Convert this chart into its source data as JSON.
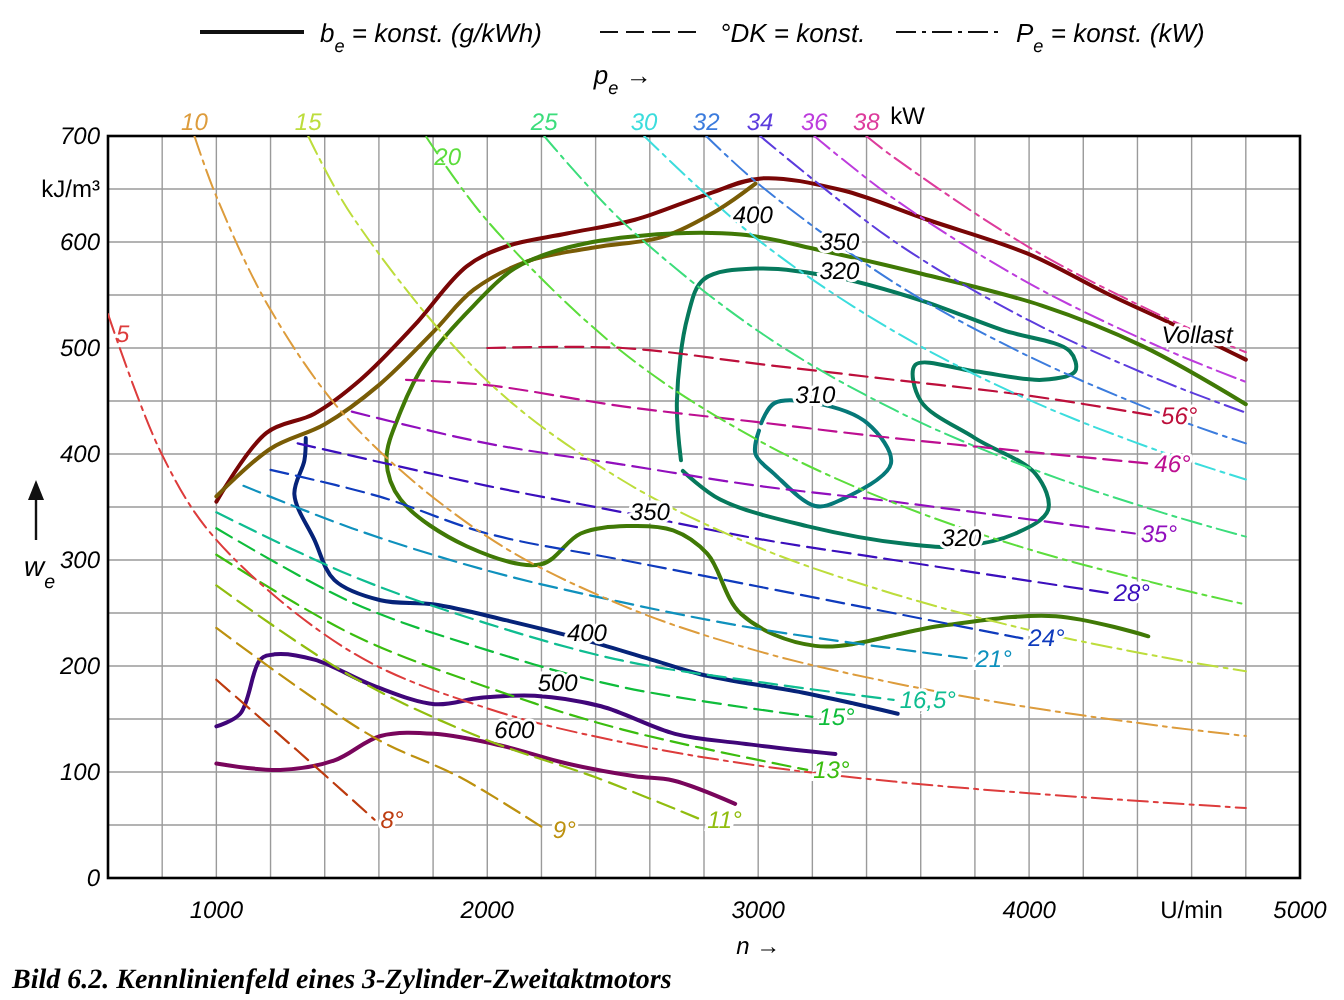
{
  "chart_data": {
    "type": "line",
    "title": "Bild 6.2. Kennlinienfeld eines 3-Zylinder-Zweitaktmotors",
    "xlabel": "n →",
    "ylabel": "w$_{e}$",
    "legend": "top",
    "grid": true,
    "xlim": [
      600,
      5000
    ],
    "ylim": [
      0,
      700
    ],
    "xticks": [
      {
        "value": 600,
        "label": null
      },
      {
        "value": 800,
        "label": null
      },
      1000,
      {
        "value": 1200,
        "label": null
      },
      {
        "value": 1400,
        "label": null
      },
      {
        "value": 1600,
        "label": null
      },
      {
        "value": 1800,
        "label": null
      },
      2000,
      {
        "value": 2200,
        "label": null
      },
      {
        "value": 2400,
        "label": null
      },
      {
        "value": 2600,
        "label": null
      },
      {
        "value": 2800,
        "label": null
      },
      3000,
      {
        "value": 3200,
        "label": null
      },
      {
        "value": 3400,
        "label": null
      },
      {
        "value": 3600,
        "label": null
      },
      {
        "value": 3800,
        "label": null
      },
      4000,
      {
        "value": 4200,
        "label": null
      },
      {
        "value": 4400,
        "label": null
      },
      {
        "value": 4600,
        "label": "U/min"
      },
      {
        "value": 4800,
        "label": null
      },
      5000
    ],
    "yticks": [
      0,
      {
        "value": 50,
        "label": null
      },
      100,
      {
        "value": 150,
        "label": null
      },
      200,
      {
        "value": 250,
        "label": null
      },
      300,
      {
        "value": 350,
        "label": null
      },
      400,
      {
        "value": 450,
        "label": null
      },
      500,
      {
        "value": 550,
        "label": null
      },
      600,
      {
        "value": 650,
        "label": "kJ/m³"
      },
      700
    ],
    "annotations": [
      "b$_{e}$ = konst. (g/kWh)",
      "°DK = konst.",
      "P$_{e}$ = konst. (kW)",
      "p$_{e}$ →",
      "kW",
      {
        "text": "Vollast",
        "x": 4620,
        "y": 505
      },
      {
        "text": "400",
        "x": 2980,
        "y": 618
      },
      {
        "text": "350",
        "x": 3300,
        "y": 592
      },
      {
        "text": "320",
        "x": 3300,
        "y": 565
      },
      {
        "text": "310",
        "x": 3211,
        "y": 448
      },
      {
        "text": "320",
        "x": 3750,
        "y": 313
      },
      {
        "text": "350",
        "x": 2600,
        "y": 338
      },
      {
        "text": "400",
        "x": 2368,
        "y": 224
      },
      {
        "text": "500",
        "x": 2260,
        "y": 176
      },
      {
        "text": "600",
        "x": 2100,
        "y": 132
      }
    ],
    "series": [
      {
        "line_style": "solid",
        "color": "#790606",
        "x": [
          1000,
          1185,
          1362,
          1532,
          1730,
          1924,
          2072,
          2294,
          2545,
          2812,
          3011,
          3307,
          3625,
          3995,
          4291,
          4543,
          4800
        ],
        "values": [
          355,
          420,
          438,
          470,
          521,
          577,
          596,
          608,
          621,
          645,
          660,
          649,
          621,
          589,
          551,
          521,
          489
        ]
      },
      {
        "line_style": "solid",
        "color": "#795c06",
        "x": [
          1000,
          1200,
          1400,
          1600,
          1800,
          1950,
          2150,
          2400,
          2650,
          2850,
          2990
        ],
        "values": [
          360,
          405,
          428,
          465,
          515,
          555,
          582,
          595,
          605,
          630,
          655
        ]
      },
      {
        "line_style": "solid",
        "color": "#407906",
        "x": [
          4800,
          4417,
          4047,
          3603,
          3233,
          2937,
          2568,
          2300,
          2100,
          1950,
          1780,
          1680,
          1628,
          1680,
          1924,
          2198,
          2345,
          2515,
          2686,
          2812,
          2937,
          3211,
          3677,
          4099,
          4440
        ],
        "values": [
          447,
          502,
          540,
          570,
          592,
          607,
          606,
          595,
          575,
          540,
          490,
          440,
          394,
          357,
          313,
          296,
          325,
          332,
          328,
          306,
          249,
          219,
          238,
          247,
          228
        ]
      },
      {
        "line_style": "solid",
        "color": "#06795c",
        "x": [
          2715,
          2700,
          2740,
          2800,
          3000,
          3300,
          3600,
          3900,
          4150,
          4170,
          4050,
          3800,
          3580,
          3600,
          3800,
          4025,
          4070,
          3950,
          3750,
          3550,
          3180,
          2860,
          2722
        ],
        "values": [
          394,
          450,
          530,
          565,
          575,
          566,
          545,
          517,
          497,
          478,
          470,
          478,
          484,
          450,
          415,
          381,
          347,
          325,
          313,
          315,
          332,
          357,
          384
        ]
      },
      {
        "line_style": "solid",
        "color": "#067979",
        "x": [
          3011,
          3060,
          3211,
          3403,
          3490,
          3307,
          3211,
          3060,
          2990,
          3003
        ],
        "values": [
          429,
          448,
          448,
          429,
          391,
          357,
          351,
          381,
          400,
          422
        ]
      },
      {
        "line_style": "solid",
        "color": "#062379",
        "x": [
          1330,
          1325,
          1288,
          1362,
          1436,
          1606,
          1806,
          2072,
          2368,
          2619,
          2790,
          3181,
          3515
        ],
        "values": [
          415,
          394,
          362,
          319,
          281,
          262,
          258,
          243,
          224,
          205,
          192,
          174,
          155
        ]
      },
      {
        "line_style": "solid",
        "color": "#400679",
        "x": [
          1000,
          1088,
          1162,
          1214,
          1362,
          1584,
          1806,
          1976,
          2175,
          2420,
          2693,
          2937,
          3285
        ],
        "values": [
          143,
          155,
          206,
          211,
          206,
          181,
          164,
          170,
          172,
          162,
          136,
          127,
          117
        ]
      },
      {
        "line_style": "solid",
        "color": "#79065c",
        "x": [
          1000,
          1236,
          1436,
          1606,
          1806,
          2050,
          2294,
          2545,
          2686,
          2915
        ],
        "values": [
          108,
          102,
          111,
          134,
          136,
          125,
          108,
          96,
          92,
          70
        ]
      },
      {
        "name": "8°",
        "line_style": "dashed",
        "color": "#bd3b0f",
        "x": [
          1000,
          1300,
          1584
        ],
        "values": [
          187,
          120,
          55
        ]
      },
      {
        "name": "9°",
        "line_style": "dashed",
        "color": "#bd910f",
        "x": [
          1000,
          1300,
          1600,
          1900,
          2220
        ],
        "values": [
          236,
          180,
          130,
          95,
          45
        ]
      },
      {
        "name": "11°",
        "line_style": "dashed",
        "color": "#91bd0f",
        "x": [
          1000,
          1500,
          2000,
          2400,
          2790
        ],
        "values": [
          276,
          190,
          130,
          95,
          55
        ]
      },
      {
        "name": "13°",
        "line_style": "dashed",
        "color": "#3bbd0f",
        "x": [
          1000,
          1500,
          2000,
          2500,
          3181
        ],
        "values": [
          305,
          230,
          180,
          140,
          102
        ]
      },
      {
        "name": "15°",
        "line_style": "dashed",
        "color": "#0fbd3b",
        "x": [
          1000,
          1500,
          2000,
          2500,
          3200
        ],
        "values": [
          330,
          260,
          215,
          180,
          152
        ]
      },
      {
        "name": "16,5°",
        "line_style": "dashed",
        "color": "#0fbd91",
        "x": [
          1000,
          1500,
          2000,
          2500,
          3000,
          3500
        ],
        "values": [
          345,
          285,
          240,
          205,
          185,
          168
        ]
      },
      {
        "name": "21°",
        "line_style": "dashed",
        "color": "#0f91bd",
        "x": [
          1100,
          1500,
          2000,
          2500,
          3000,
          3780
        ],
        "values": [
          370,
          330,
          290,
          260,
          235,
          207
        ]
      },
      {
        "name": "24°",
        "line_style": "dashed",
        "color": "#0f3bbd",
        "x": [
          1200,
          1600,
          2000,
          2500,
          3000,
          3975
        ],
        "values": [
          385,
          360,
          325,
          300,
          275,
          226
        ]
      },
      {
        "name": "28°",
        "line_style": "dashed",
        "color": "#3b0fbd",
        "x": [
          1300,
          2000,
          2500,
          3000,
          3500,
          4290
        ],
        "values": [
          410,
          370,
          345,
          320,
          300,
          269
        ]
      },
      {
        "name": "35°",
        "line_style": "dashed",
        "color": "#910fbd",
        "x": [
          1500,
          2000,
          2500,
          3000,
          3500,
          4390
        ],
        "values": [
          440,
          410,
          390,
          370,
          355,
          325
        ]
      },
      {
        "name": "46°",
        "line_style": "dashed",
        "color": "#bd0f91",
        "x": [
          1700,
          2000,
          2500,
          3000,
          3500,
          4440
        ],
        "values": [
          470,
          465,
          445,
          430,
          415,
          391
        ]
      },
      {
        "name": "56°",
        "line_style": "dashed",
        "color": "#bd0f3b",
        "x": [
          2000,
          2500,
          3000,
          3500,
          4000,
          4465
        ],
        "values": [
          500,
          500,
          485,
          470,
          455,
          436
        ]
      },
      {
        "name": "5",
        "line_style": "dashdot",
        "color": "#dd3c3c",
        "x": [
          600,
          800,
          1000,
          1500,
          2000,
          2500,
          3000,
          3500,
          4000,
          4500,
          4800
        ],
        "values": [
          532,
          399,
          319,
          213,
          160,
          128,
          106,
          91,
          80,
          71,
          66
        ]
      },
      {
        "name": "10",
        "line_style": "dashdot",
        "color": "#dd9c3c",
        "x": [
          919,
          1000,
          1200,
          1500,
          2000,
          2500,
          3000,
          3500,
          4000,
          4500,
          4800
        ],
        "values": [
          700,
          643,
          536,
          429,
          322,
          257,
          214,
          184,
          161,
          143,
          134
        ]
      },
      {
        "name": "15",
        "line_style": "dashdot",
        "color": "#bddd3c",
        "x": [
          1339,
          1500,
          2000,
          2500,
          3000,
          3500,
          4000,
          4500,
          4800
        ],
        "values": [
          700,
          625,
          469,
          375,
          312,
          268,
          234,
          208,
          195
        ]
      },
      {
        "name": "20",
        "line_style": "dashdot",
        "color": "#5cdd3c",
        "x": [
          1775,
          2000,
          2500,
          3000,
          3500,
          4000,
          4500,
          4800
        ],
        "values": [
          699,
          620,
          496,
          413,
          354,
          310,
          276,
          258
        ]
      },
      {
        "name": "25",
        "line_style": "dashdot",
        "color": "#3cdd7c",
        "x": [
          2210,
          2500,
          3000,
          3500,
          4000,
          4500,
          4800
        ],
        "values": [
          700,
          619,
          516,
          442,
          387,
          344,
          322
        ]
      },
      {
        "name": "30",
        "line_style": "dashdot",
        "color": "#3cdddd",
        "x": [
          2579,
          3000,
          3500,
          4000,
          4500,
          4800
        ],
        "values": [
          700,
          602,
          516,
          451,
          401,
          376
        ]
      },
      {
        "name": "32",
        "line_style": "dashdot",
        "color": "#3c7cdd",
        "x": [
          2808,
          3000,
          3500,
          4000,
          4500,
          4800
        ],
        "values": [
          700,
          655,
          562,
          492,
          437,
          410
        ]
      },
      {
        "name": "34",
        "line_style": "dashdot",
        "color": "#5c3cdd",
        "x": [
          3007,
          3500,
          4000,
          4500,
          4800
        ],
        "values": [
          700,
          601,
          526,
          468,
          439
        ]
      },
      {
        "name": "36",
        "line_style": "dashdot",
        "color": "#bd3cdd",
        "x": [
          3207,
          3500,
          4000,
          4500,
          4800
        ],
        "values": [
          700,
          641,
          561,
          499,
          468
        ]
      },
      {
        "name": "38",
        "line_style": "dashdot",
        "color": "#dd3c9c",
        "x": [
          3399,
          3500,
          4000,
          4500,
          4800
        ],
        "values": [
          700,
          680,
          595,
          529,
          496
        ]
      }
    ]
  }
}
